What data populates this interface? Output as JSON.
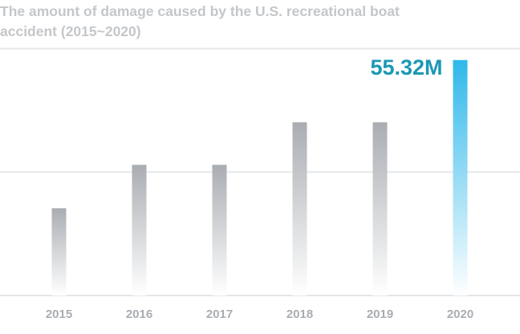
{
  "chart_data": {
    "type": "bar",
    "title": "The amount of damage caused by the U.S. recreational boat accident (2015~2020)",
    "categories": [
      "2015",
      "2016",
      "2017",
      "2018",
      "2019",
      "2020"
    ],
    "values": [
      20.5,
      30.7,
      30.7,
      40.7,
      40.7,
      55.32
    ],
    "ylim": [
      0,
      60
    ],
    "grid": true,
    "highlight_index": 5,
    "annotations": [
      {
        "category": "2020",
        "text": "55.32M"
      }
    ],
    "colors": {
      "bar_top": "#a9adb2",
      "bar_bottom": "#ffffff",
      "highlight_top": "#2fb8ea",
      "highlight_bottom": "#ffffff",
      "annotation": "#1b98b4",
      "grid": "#e5e7e9",
      "axis_text": "#a9adb2"
    }
  }
}
